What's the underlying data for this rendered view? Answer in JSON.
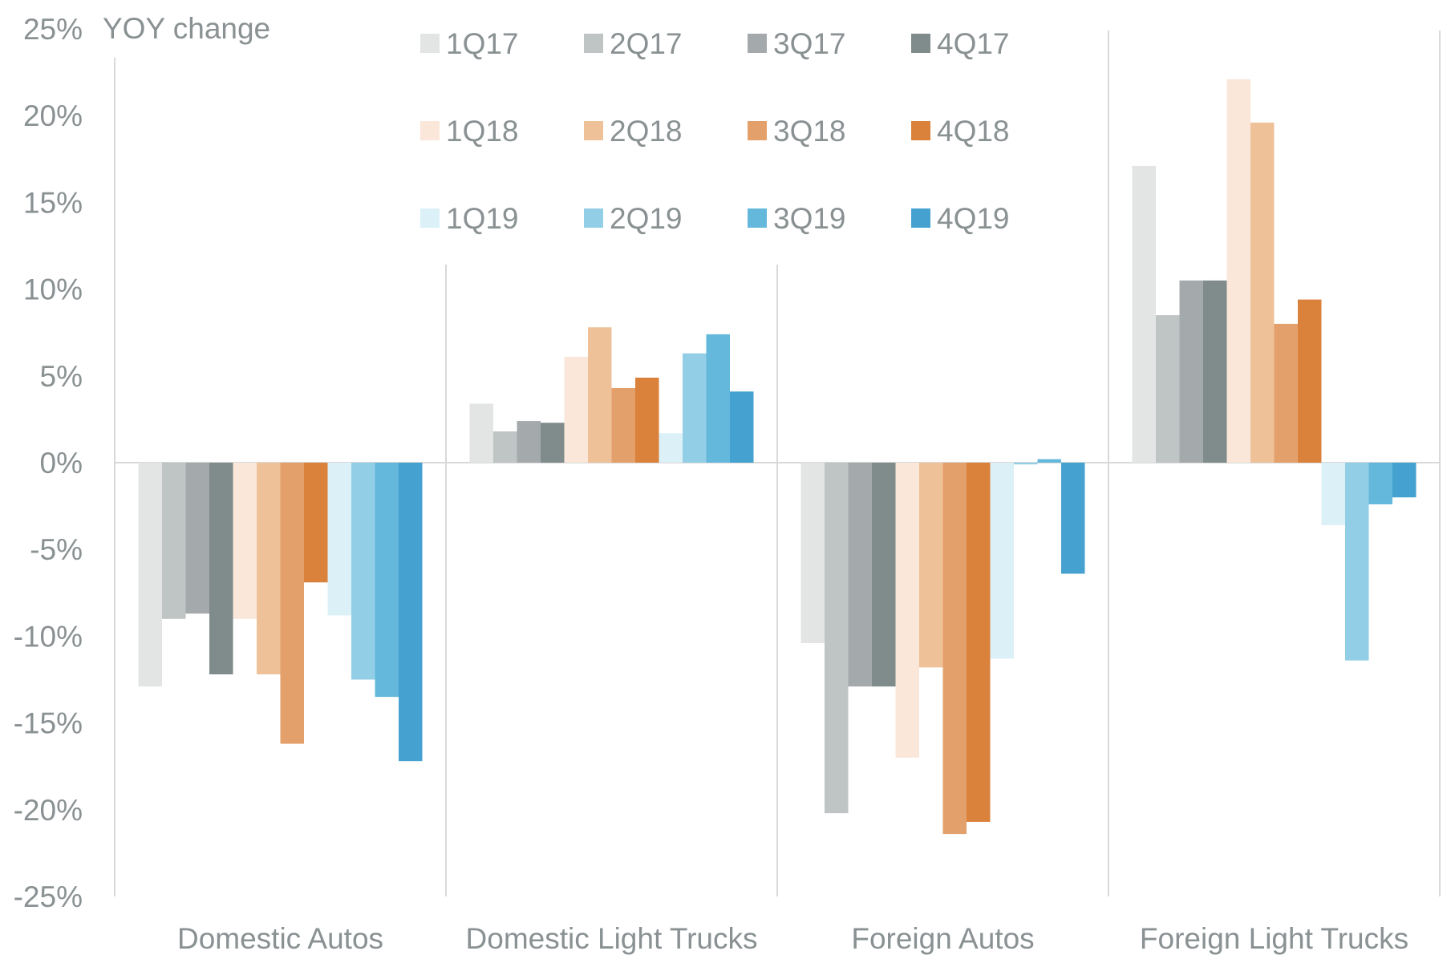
{
  "chart_data": {
    "type": "bar",
    "ylabel": "YOY change",
    "ylim": [
      -25,
      25
    ],
    "y_ticks": [
      "25%",
      "20%",
      "15%",
      "10%",
      "5%",
      "0%",
      "-5%",
      "-10%",
      "-15%",
      "-20%",
      "-25%"
    ],
    "y_tick_values": [
      25,
      20,
      15,
      10,
      5,
      0,
      -5,
      -10,
      -15,
      -20,
      -25
    ],
    "categories": [
      "Domestic Autos",
      "Domestic Light Trucks",
      "Foreign Autos",
      "Foreign Light Trucks"
    ],
    "legend_position": "top-center",
    "grid": false,
    "series": [
      {
        "name": "1Q17",
        "color": "#e3e5e5",
        "values": [
          -12.9,
          3.4,
          -10.4,
          17.1
        ]
      },
      {
        "name": "2Q17",
        "color": "#bfc4c4",
        "values": [
          -9.0,
          1.8,
          -20.2,
          8.5
        ]
      },
      {
        "name": "3Q17",
        "color": "#a4aaab",
        "values": [
          -8.7,
          2.4,
          -12.9,
          10.5
        ]
      },
      {
        "name": "4Q17",
        "color": "#808b8b",
        "values": [
          -12.2,
          2.3,
          -12.9,
          10.5
        ]
      },
      {
        "name": "1Q18",
        "color": "#fae7da",
        "values": [
          -9.0,
          6.1,
          -17.0,
          22.1
        ]
      },
      {
        "name": "2Q18",
        "color": "#efc199",
        "values": [
          -12.2,
          7.8,
          -11.8,
          19.6
        ]
      },
      {
        "name": "3Q18",
        "color": "#e3a06a",
        "values": [
          -16.2,
          4.3,
          -21.4,
          8.0
        ]
      },
      {
        "name": "4Q18",
        "color": "#da823c",
        "values": [
          -6.9,
          4.9,
          -20.7,
          9.4
        ]
      },
      {
        "name": "1Q19",
        "color": "#dcf0f8",
        "values": [
          -8.8,
          1.7,
          -11.3,
          -3.6
        ]
      },
      {
        "name": "2Q19",
        "color": "#92cee6",
        "values": [
          -12.5,
          6.3,
          -0.1,
          -11.4
        ]
      },
      {
        "name": "3Q19",
        "color": "#64b8db",
        "values": [
          -13.5,
          7.4,
          0.2,
          -2.4
        ]
      },
      {
        "name": "4Q19",
        "color": "#45a2d0",
        "values": [
          -17.2,
          4.1,
          -6.4,
          -2.0
        ]
      }
    ]
  }
}
